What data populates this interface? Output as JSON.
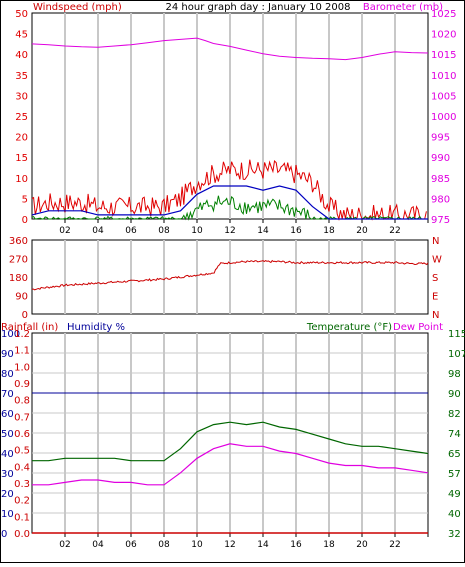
{
  "title": "24 hour graph day : January 10 2008",
  "colors": {
    "wind": "#e00000",
    "gust_avg": "#0000c0",
    "wind_green": "#008000",
    "pressure": "#e000e0",
    "direction": "#cc0000",
    "humidity": "#000099",
    "temperature": "#006600",
    "dewpoint": "#e000e0",
    "rainfall": "#cc0000",
    "grid": "#c8c8c8"
  },
  "chart_data": [
    {
      "type": "line",
      "name": "wind-barometer",
      "title": "24 hour graph day : January 10 2008",
      "ylabel": "Windspeed (mph)",
      "y2label": "Barometer (mb)",
      "xticks": [
        "02",
        "04",
        "06",
        "08",
        "10",
        "12",
        "14",
        "16",
        "18",
        "20",
        "22",
        ""
      ],
      "xlim": [
        0,
        24
      ],
      "ylim": [
        0,
        50
      ],
      "y2lim": [
        975,
        1025
      ],
      "yticks": [
        "0",
        "5",
        "10",
        "15",
        "20",
        "25",
        "30",
        "35",
        "40",
        "45",
        "50"
      ],
      "y2ticks": [
        "975",
        "980",
        "985",
        "990",
        "995",
        "1000",
        "1005",
        "1010",
        "1015",
        "1020",
        "1025"
      ],
      "barometer": {
        "x": [
          0,
          1,
          2,
          3,
          4,
          5,
          6,
          7,
          8,
          9,
          10,
          10.5,
          11,
          12,
          13,
          14,
          15,
          16,
          17,
          18,
          19,
          20,
          21,
          22,
          23,
          24
        ],
        "y": [
          1017.5,
          1017.3,
          1017.0,
          1016.8,
          1016.7,
          1017.0,
          1017.3,
          1017.8,
          1018.3,
          1018.6,
          1018.9,
          1018.3,
          1017.6,
          1016.9,
          1016.0,
          1015.1,
          1014.5,
          1014.2,
          1014.0,
          1013.9,
          1013.7,
          1014.2,
          1015.0,
          1015.6,
          1015.4,
          1015.3
        ]
      },
      "windspeed_max": {
        "x": [
          0,
          1,
          2,
          3,
          4,
          5,
          6,
          7,
          8,
          9,
          10,
          11,
          12,
          13,
          14,
          15,
          16,
          17,
          18,
          19,
          20,
          21,
          22,
          23,
          24
        ],
        "y": [
          3,
          4,
          4,
          4,
          3,
          3,
          3,
          3,
          3,
          5,
          9,
          11,
          12,
          12,
          12,
          12,
          11,
          9,
          3,
          1,
          1,
          1,
          1,
          1,
          1
        ]
      },
      "windspeed_avg": {
        "x": [
          0,
          1,
          2,
          3,
          4,
          5,
          6,
          7,
          8,
          9,
          10,
          11,
          12,
          13,
          14,
          15,
          16,
          17,
          18,
          19,
          20,
          21,
          22,
          23,
          24
        ],
        "y": [
          1,
          2,
          2,
          2,
          1,
          1,
          1,
          1,
          1,
          2,
          6,
          8,
          8,
          8,
          7,
          8,
          7,
          3,
          0,
          0,
          0,
          0,
          0,
          0,
          0
        ]
      },
      "windspeed_min": {
        "x": [
          0,
          1,
          2,
          3,
          4,
          5,
          6,
          7,
          8,
          9,
          10,
          11,
          12,
          13,
          14,
          15,
          16,
          17,
          18,
          19,
          20,
          21,
          22,
          23,
          24
        ],
        "y": [
          0,
          0,
          0,
          0,
          0,
          0,
          0,
          0,
          0,
          0,
          2,
          4,
          4,
          3,
          3,
          3,
          2,
          0,
          0,
          0,
          0,
          0,
          0,
          0,
          0
        ]
      }
    },
    {
      "type": "line",
      "name": "wind-direction",
      "xlim": [
        0,
        24
      ],
      "ylim": [
        0,
        360
      ],
      "yticks": [
        "0",
        "90",
        "180",
        "270",
        "360"
      ],
      "y2ticks": [
        "N",
        "W",
        "S",
        "E",
        "N"
      ],
      "series": [
        {
          "x": [
            0,
            1,
            2,
            3,
            4,
            5,
            6,
            7,
            8,
            9,
            10,
            11,
            11.4,
            12,
            13,
            14,
            15,
            16,
            17,
            18,
            19,
            20,
            21,
            22,
            23,
            24
          ],
          "y": [
            120,
            130,
            140,
            145,
            150,
            155,
            160,
            165,
            170,
            180,
            190,
            200,
            245,
            250,
            255,
            255,
            255,
            250,
            250,
            250,
            250,
            250,
            250,
            250,
            245,
            245
          ]
        }
      ]
    },
    {
      "type": "line",
      "name": "temp-humidity",
      "label_left": "Rainfall (in)",
      "label_humidity": "Humidity %",
      "label_temp": "Temperature (°F)",
      "label_dew": "Dew Point",
      "xticks": [
        "02",
        "04",
        "06",
        "08",
        "10",
        "12",
        "14",
        "16",
        "18",
        "20",
        "22",
        ""
      ],
      "xlim": [
        0,
        24
      ],
      "humidity_ticks": [
        "0",
        "10",
        "20",
        "30",
        "40",
        "50",
        "60",
        "70",
        "80",
        "90",
        "100"
      ],
      "rain_ticks": [
        "0.0",
        "0.1",
        "0.2",
        "0.3",
        "0.4",
        "0.5",
        "0.6",
        "0.7",
        "0.8",
        "0.9",
        "1.0",
        "1.1",
        "1.2"
      ],
      "temp_ticks": [
        "32",
        "40",
        "49",
        "57",
        "65",
        "74",
        "82",
        "90",
        "98",
        "107",
        "115"
      ],
      "templim": [
        32,
        115
      ],
      "humidity": {
        "x": [
          0,
          24
        ],
        "y": [
          70,
          70
        ]
      },
      "rainfall": {
        "x": [
          0,
          24
        ],
        "y": [
          0,
          0
        ]
      },
      "temperature": {
        "x": [
          0,
          1,
          2,
          3,
          4,
          5,
          6,
          7,
          8,
          9,
          10,
          11,
          12,
          13,
          14,
          15,
          16,
          17,
          18,
          19,
          20,
          21,
          22,
          23,
          24
        ],
        "y": [
          62,
          62,
          63,
          63,
          63,
          63,
          62,
          62,
          62,
          67,
          74,
          77,
          78,
          77,
          78,
          76,
          75,
          73,
          71,
          69,
          68,
          68,
          67,
          66,
          65
        ]
      },
      "dewpoint": {
        "x": [
          0,
          1,
          2,
          3,
          4,
          5,
          6,
          7,
          8,
          9,
          10,
          11,
          12,
          13,
          14,
          15,
          16,
          17,
          18,
          19,
          20,
          21,
          22,
          23,
          24
        ],
        "y": [
          52,
          52,
          53,
          54,
          54,
          53,
          53,
          52,
          52,
          57,
          63,
          67,
          69,
          68,
          68,
          66,
          65,
          63,
          61,
          60,
          60,
          59,
          59,
          58,
          57
        ]
      }
    }
  ]
}
